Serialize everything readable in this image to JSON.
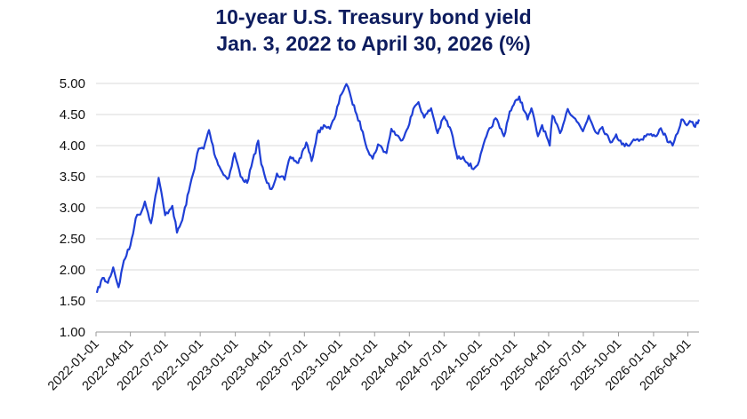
{
  "chart_data": {
    "type": "line",
    "title": "10-year U.S. Treasury bond yield",
    "subtitle": "Jan. 3, 2022 to April 30, 2026 (%)",
    "xlabel": "",
    "ylabel": "",
    "x_type": "date",
    "xlim": [
      "2022-01-01",
      "2026-04-30"
    ],
    "ylim": [
      1.0,
      5.0
    ],
    "yticks": [
      "1.00",
      "1.50",
      "2.00",
      "2.50",
      "3.00",
      "3.50",
      "4.00",
      "4.50",
      "5.00"
    ],
    "xticks": [
      "2022-01-01",
      "2022-04-01",
      "2022-07-01",
      "2022-10-01",
      "2023-01-01",
      "2023-04-01",
      "2023-07-01",
      "2023-10-01",
      "2024-01-01",
      "2024-04-01",
      "2024-07-01",
      "2024-10-01",
      "2025-01-01",
      "2025-04-01",
      "2025-07-01",
      "2025-10-01",
      "2026-01-01",
      "2026-04-01"
    ],
    "grid": "horizontal",
    "legend": "none",
    "line_color": "#1f3fd6",
    "series": [
      {
        "points": [
          [
            "2022-01-03",
            1.63
          ],
          [
            "2022-01-18",
            1.87
          ],
          [
            "2022-02-01",
            1.79
          ],
          [
            "2022-02-15",
            2.04
          ],
          [
            "2022-03-01",
            1.72
          ],
          [
            "2022-03-15",
            2.15
          ],
          [
            "2022-04-01",
            2.39
          ],
          [
            "2022-04-15",
            2.83
          ],
          [
            "2022-05-01",
            2.95
          ],
          [
            "2022-05-09",
            3.1
          ],
          [
            "2022-05-25",
            2.75
          ],
          [
            "2022-06-14",
            3.48
          ],
          [
            "2022-07-01",
            2.88
          ],
          [
            "2022-07-20",
            3.03
          ],
          [
            "2022-08-01",
            2.6
          ],
          [
            "2022-08-15",
            2.8
          ],
          [
            "2022-09-01",
            3.26
          ],
          [
            "2022-09-27",
            3.95
          ],
          [
            "2022-10-10",
            3.95
          ],
          [
            "2022-10-24",
            4.25
          ],
          [
            "2022-11-10",
            3.81
          ],
          [
            "2022-12-01",
            3.53
          ],
          [
            "2022-12-15",
            3.48
          ],
          [
            "2022-12-30",
            3.88
          ],
          [
            "2023-01-15",
            3.5
          ],
          [
            "2023-02-01",
            3.4
          ],
          [
            "2023-03-02",
            4.08
          ],
          [
            "2023-03-10",
            3.7
          ],
          [
            "2023-03-25",
            3.4
          ],
          [
            "2023-04-06",
            3.3
          ],
          [
            "2023-04-20",
            3.55
          ],
          [
            "2023-05-10",
            3.45
          ],
          [
            "2023-05-25",
            3.82
          ],
          [
            "2023-06-15",
            3.72
          ],
          [
            "2023-07-06",
            4.05
          ],
          [
            "2023-07-20",
            3.75
          ],
          [
            "2023-08-03",
            4.18
          ],
          [
            "2023-08-21",
            4.33
          ],
          [
            "2023-09-06",
            4.27
          ],
          [
            "2023-09-21",
            4.49
          ],
          [
            "2023-10-03",
            4.8
          ],
          [
            "2023-10-19",
            4.99
          ],
          [
            "2023-11-01",
            4.75
          ],
          [
            "2023-11-15",
            4.5
          ],
          [
            "2023-12-01",
            4.22
          ],
          [
            "2023-12-15",
            3.91
          ],
          [
            "2023-12-27",
            3.79
          ],
          [
            "2024-01-10",
            4.02
          ],
          [
            "2024-02-01",
            3.88
          ],
          [
            "2024-02-14",
            4.27
          ],
          [
            "2024-03-10",
            4.08
          ],
          [
            "2024-03-25",
            4.25
          ],
          [
            "2024-04-15",
            4.63
          ],
          [
            "2024-04-25",
            4.7
          ],
          [
            "2024-05-10",
            4.45
          ],
          [
            "2024-05-28",
            4.6
          ],
          [
            "2024-06-14",
            4.2
          ],
          [
            "2024-07-01",
            4.47
          ],
          [
            "2024-07-20",
            4.23
          ],
          [
            "2024-08-05",
            3.79
          ],
          [
            "2024-08-20",
            3.82
          ],
          [
            "2024-09-16",
            3.62
          ],
          [
            "2024-10-01",
            3.75
          ],
          [
            "2024-10-20",
            4.15
          ],
          [
            "2024-11-13",
            4.44
          ],
          [
            "2024-12-05",
            4.15
          ],
          [
            "2024-12-20",
            4.55
          ],
          [
            "2025-01-14",
            4.79
          ],
          [
            "2025-02-05",
            4.42
          ],
          [
            "2025-02-15",
            4.6
          ],
          [
            "2025-03-04",
            4.15
          ],
          [
            "2025-03-15",
            4.33
          ],
          [
            "2025-04-04",
            4.0
          ],
          [
            "2025-04-11",
            4.48
          ],
          [
            "2025-05-01",
            4.2
          ],
          [
            "2025-05-21",
            4.59
          ],
          [
            "2025-06-10",
            4.43
          ],
          [
            "2025-06-30",
            4.23
          ],
          [
            "2025-07-15",
            4.48
          ],
          [
            "2025-08-05",
            4.2
          ],
          [
            "2025-08-20",
            4.3
          ],
          [
            "2025-09-10",
            4.05
          ],
          [
            "2025-09-25",
            4.18
          ],
          [
            "2025-10-10",
            4.02
          ],
          [
            "2025-10-25",
            4.0
          ],
          [
            "2025-11-10",
            4.1
          ],
          [
            "2025-12-01",
            4.1
          ],
          [
            "2025-12-15",
            4.18
          ],
          [
            "2026-01-05",
            4.15
          ],
          [
            "2026-01-20",
            4.28
          ],
          [
            "2026-02-10",
            4.05
          ],
          [
            "2026-02-20",
            4.0
          ],
          [
            "2026-03-05",
            4.2
          ],
          [
            "2026-03-15",
            4.42
          ],
          [
            "2026-03-25",
            4.35
          ],
          [
            "2026-04-10",
            4.38
          ],
          [
            "2026-04-20",
            4.3
          ],
          [
            "2026-04-30",
            4.42
          ]
        ]
      }
    ]
  }
}
